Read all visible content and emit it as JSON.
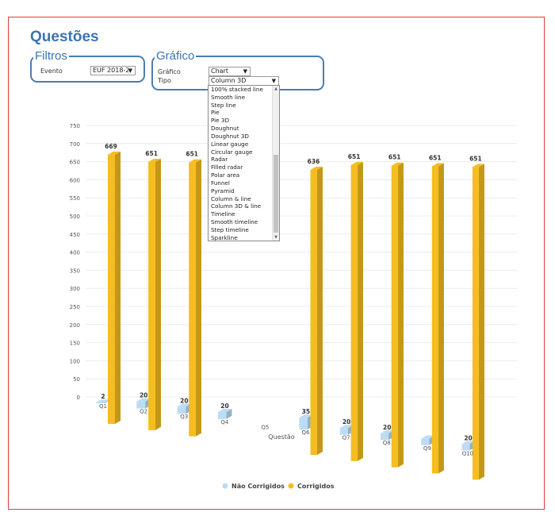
{
  "page": {
    "title": "Questões"
  },
  "filtros": {
    "legend": "Filtros",
    "evento_label": "Evento",
    "evento_value": "EUF 2018-2"
  },
  "grafico": {
    "legend": "Gráfico",
    "grafico_label": "Gráfico",
    "grafico_value": "Chart",
    "tipo_label": "Tipo",
    "tipo_value": "Column 3D",
    "tipo_options_visible": [
      "100% stacked line",
      "Smooth line",
      "Step line",
      "Pie",
      "Pie 3D",
      "Doughnut",
      "Doughnut 3D",
      "Linear gauge",
      "Circular gauge",
      "Radar",
      "Filled radar",
      "Polar area",
      "Funnel",
      "Pyramid",
      "Column & line",
      "Column 3D & line",
      "Timeline",
      "Smooth timeline",
      "Step timeline",
      "Sparkline"
    ]
  },
  "icons": {
    "select_arrow": "triangle-down",
    "scroll_up": "triangle-up",
    "scroll_down": "triangle-down"
  },
  "chart_data": {
    "type": "bar",
    "variant": "column-3d",
    "xlabel": "Questão",
    "ylabel": "",
    "ylim": [
      0,
      750
    ],
    "yticks": [
      0,
      50,
      100,
      150,
      200,
      250,
      300,
      350,
      400,
      450,
      500,
      550,
      600,
      650,
      700,
      750
    ],
    "categories": [
      "Q1",
      "Q2",
      "Q3",
      "Q4",
      "Q5",
      "Q6",
      "Q7",
      "Q8",
      "Q9",
      "Q10"
    ],
    "series": [
      {
        "name": "Não Corrigidos",
        "color": "#bcdcf5",
        "values": [
          2,
          20,
          20,
          20,
          null,
          35,
          20,
          20,
          20,
          20
        ],
        "labels": [
          "2",
          "20",
          "20",
          "20",
          "",
          "35",
          "20",
          "20",
          "",
          "20"
        ]
      },
      {
        "name": "Corrigidos",
        "color": "#f5bd1f",
        "values": [
          669,
          651,
          651,
          null,
          null,
          636,
          651,
          651,
          651,
          651
        ],
        "labels": [
          "669",
          "651",
          "651",
          "",
          "",
          "636",
          "651",
          "651",
          "651",
          "651"
        ]
      }
    ],
    "grid": true,
    "legend_position": "bottom"
  }
}
